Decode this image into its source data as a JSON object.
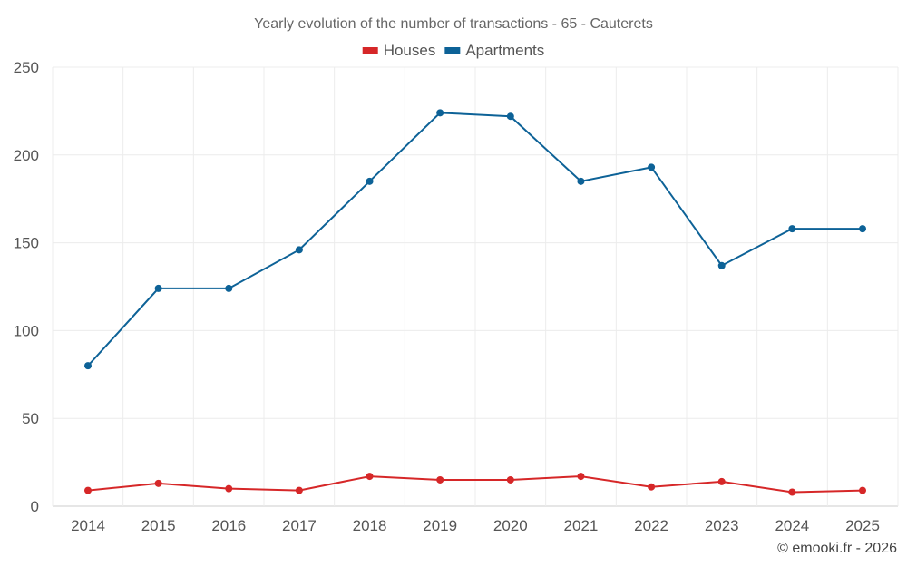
{
  "chart_data": {
    "type": "line",
    "title": "Yearly evolution of the number of transactions - 65 - Cauterets",
    "xlabel": "",
    "ylabel": "",
    "x": [
      "2014",
      "2015",
      "2016",
      "2017",
      "2018",
      "2019",
      "2020",
      "2021",
      "2022",
      "2023",
      "2024",
      "2025"
    ],
    "ylim": [
      0,
      250
    ],
    "yticks": [
      0,
      50,
      100,
      150,
      200,
      250
    ],
    "grid": true,
    "legend_position": "top-center",
    "series": [
      {
        "name": "Houses",
        "color": "#d62728",
        "values": [
          9,
          13,
          10,
          9,
          17,
          15,
          15,
          17,
          11,
          14,
          8,
          9
        ]
      },
      {
        "name": "Apartments",
        "color": "#0d6297",
        "values": [
          80,
          124,
          124,
          146,
          185,
          224,
          222,
          185,
          193,
          137,
          158,
          158
        ]
      }
    ]
  },
  "footer": {
    "credit": "© emooki.fr - 2026"
  }
}
